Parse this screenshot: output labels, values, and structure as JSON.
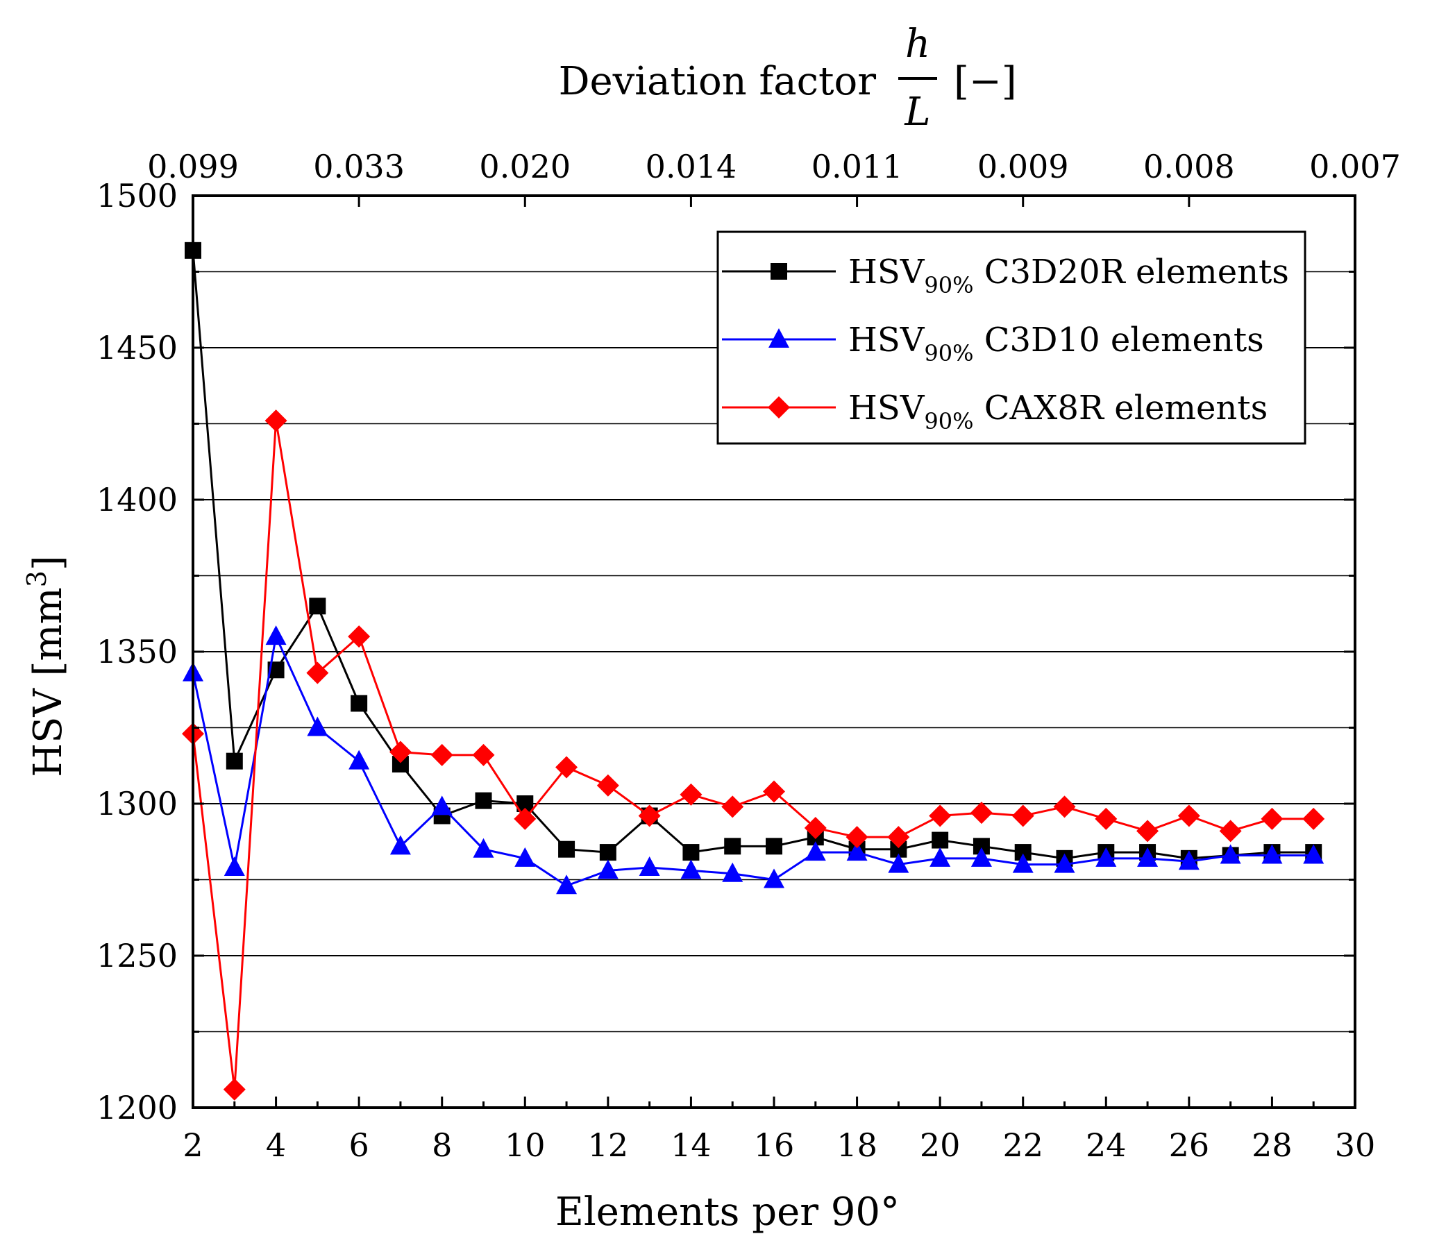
{
  "chart_data": {
    "type": "line",
    "top_axis": {
      "title": "Deviation factor",
      "fraction_numerator": "h",
      "fraction_denominator": "L",
      "unit": "[−]",
      "tick_labels": [
        "0.099",
        "0.033",
        "0.020",
        "0.014",
        "0.011",
        "0.009",
        "0.008",
        "0.007"
      ]
    },
    "xlabel": "Elements per 90°",
    "ylabel": "HSV [mm",
    "ylabel_superscript": "3",
    "ylabel_close": "]",
    "xlim": [
      2,
      30
    ],
    "ylim": [
      1200,
      1500
    ],
    "x_ticks": [
      2,
      4,
      6,
      8,
      10,
      12,
      14,
      16,
      18,
      20,
      22,
      24,
      26,
      28,
      30
    ],
    "y_ticks": [
      1200,
      1250,
      1300,
      1350,
      1400,
      1450,
      1500
    ],
    "grid": "horizontal",
    "legend_position": "top-right",
    "legend_prefix": "HSV",
    "legend_subscript": "90%",
    "series": [
      {
        "name": "C3D20R elements",
        "color": "#000000",
        "marker": "square",
        "x": [
          2,
          3,
          4,
          5,
          6,
          7,
          8,
          9,
          10,
          11,
          12,
          13,
          14,
          15,
          16,
          17,
          18,
          19,
          20,
          21,
          22,
          23,
          24,
          25,
          26,
          27,
          28,
          29
        ],
        "values": [
          1482,
          1314,
          1344,
          1365,
          1333,
          1313,
          1296,
          1301,
          1300,
          1285,
          1284,
          1296,
          1284,
          1286,
          1286,
          1289,
          1285,
          1285,
          1288,
          1286,
          1284,
          1282,
          1284,
          1284,
          1282,
          1283,
          1284,
          1284
        ]
      },
      {
        "name": "C3D10 elements",
        "color": "#0000ff",
        "marker": "triangle",
        "x": [
          2,
          3,
          4,
          5,
          6,
          7,
          8,
          9,
          10,
          11,
          12,
          13,
          14,
          15,
          16,
          17,
          18,
          19,
          20,
          21,
          22,
          23,
          24,
          25,
          26,
          27,
          28,
          29
        ],
        "values": [
          1343,
          1279,
          1355,
          1325,
          1314,
          1286,
          1299,
          1285,
          1282,
          1273,
          1278,
          1279,
          1278,
          1277,
          1275,
          1284,
          1284,
          1280,
          1282,
          1282,
          1280,
          1280,
          1282,
          1282,
          1281,
          1283,
          1283,
          1283
        ]
      },
      {
        "name": "CAX8R elements",
        "color": "#ff0000",
        "marker": "diamond",
        "x": [
          2,
          3,
          4,
          5,
          6,
          7,
          8,
          9,
          10,
          11,
          12,
          13,
          14,
          15,
          16,
          17,
          18,
          19,
          20,
          21,
          22,
          23,
          24,
          25,
          26,
          27,
          28,
          29
        ],
        "values": [
          1323,
          1206,
          1426,
          1343,
          1355,
          1317,
          1316,
          1316,
          1295,
          1312,
          1306,
          1296,
          1303,
          1299,
          1304,
          1292,
          1289,
          1289,
          1296,
          1297,
          1296,
          1299,
          1295,
          1291,
          1296,
          1291,
          1295,
          1295
        ]
      }
    ]
  }
}
